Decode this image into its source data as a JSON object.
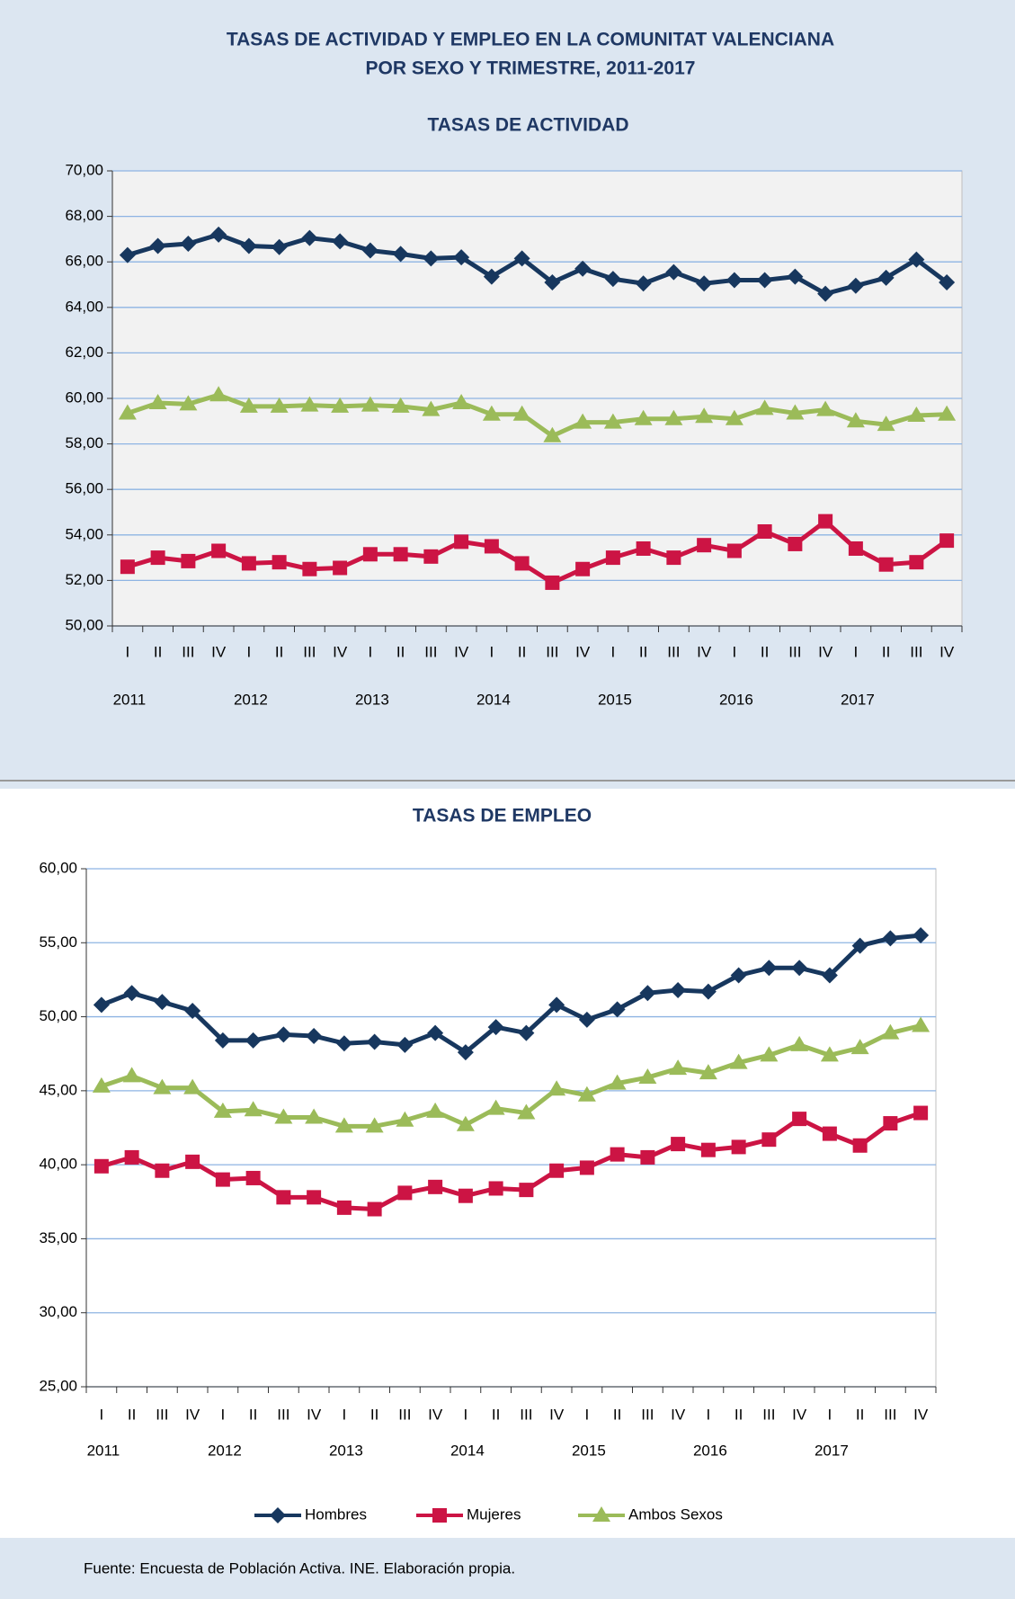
{
  "title_lines": [
    "TASAS DE ACTIVIDAD Y EMPLEO EN LA COMUNITAT VALENCIANA",
    "POR SEXO Y TRIMESTRE, 2011-2017"
  ],
  "source": "Fuente: Encuesta de Población Activa. INE. Elaboración propia.",
  "chart_data": [
    {
      "type": "line",
      "title": "TASAS DE ACTIVIDAD",
      "categories": [
        "I",
        "II",
        "III",
        "IV",
        "I",
        "II",
        "III",
        "IV",
        "I",
        "II",
        "III",
        "IV",
        "I",
        "II",
        "III",
        "IV",
        "I",
        "II",
        "III",
        "IV",
        "I",
        "II",
        "III",
        "IV",
        "I",
        "II",
        "III",
        "IV"
      ],
      "years": [
        "2011",
        "2012",
        "2013",
        "2014",
        "2015",
        "2016",
        "2017"
      ],
      "ylim": [
        50,
        70
      ],
      "yticks": [
        {
          "value": 50,
          "label": "50,00"
        },
        {
          "value": 52,
          "label": "52,00"
        },
        {
          "value": 54,
          "label": "54,00"
        },
        {
          "value": 56,
          "label": "56,00"
        },
        {
          "value": 58,
          "label": "58,00"
        },
        {
          "value": 60,
          "label": "60,00"
        },
        {
          "value": 62,
          "label": "62,00"
        },
        {
          "value": 64,
          "label": "64,00"
        },
        {
          "value": 66,
          "label": "66,00"
        },
        {
          "value": 68,
          "label": "68,00"
        },
        {
          "value": 70,
          "label": "70,00"
        }
      ],
      "grid": true,
      "series": [
        {
          "name": "Hombres",
          "color": "#17375e",
          "marker": "diamond",
          "values": [
            66.3,
            66.7,
            66.8,
            67.2,
            66.7,
            66.65,
            67.05,
            66.9,
            66.5,
            66.35,
            66.15,
            66.2,
            65.35,
            66.15,
            65.1,
            65.7,
            65.25,
            65.05,
            65.55,
            65.05,
            65.2,
            65.2,
            65.35,
            64.6,
            64.95,
            65.3,
            66.1,
            65.1
          ]
        },
        {
          "name": "Mujeres",
          "color": "#cc1444",
          "marker": "square",
          "values": [
            52.6,
            53.0,
            52.85,
            53.3,
            52.75,
            52.8,
            52.5,
            52.55,
            53.15,
            53.15,
            53.05,
            53.7,
            53.5,
            52.75,
            51.9,
            52.5,
            53.0,
            53.4,
            53.0,
            53.55,
            53.3,
            54.15,
            53.6,
            54.6,
            53.4,
            52.7,
            52.8,
            53.75
          ]
        },
        {
          "name": "Ambos Sexos",
          "color": "#9bbb59",
          "marker": "triangle",
          "values": [
            59.35,
            59.8,
            59.75,
            60.15,
            59.65,
            59.65,
            59.7,
            59.65,
            59.7,
            59.65,
            59.5,
            59.8,
            59.3,
            59.3,
            58.35,
            58.95,
            58.95,
            59.1,
            59.1,
            59.2,
            59.1,
            59.55,
            59.35,
            59.5,
            59.0,
            58.85,
            59.25,
            59.3
          ]
        }
      ]
    },
    {
      "type": "line",
      "title": "TASAS DE EMPLEO",
      "categories": [
        "I",
        "II",
        "III",
        "IV",
        "I",
        "II",
        "III",
        "IV",
        "I",
        "II",
        "III",
        "IV",
        "I",
        "II",
        "III",
        "IV",
        "I",
        "II",
        "III",
        "IV",
        "I",
        "II",
        "III",
        "IV",
        "I",
        "II",
        "III",
        "IV"
      ],
      "years": [
        "2011",
        "2012",
        "2013",
        "2014",
        "2015",
        "2016",
        "2017"
      ],
      "ylim": [
        25,
        60
      ],
      "yticks": [
        {
          "value": 25,
          "label": "25,00"
        },
        {
          "value": 30,
          "label": "30,00"
        },
        {
          "value": 35,
          "label": "35,00"
        },
        {
          "value": 40,
          "label": "40,00"
        },
        {
          "value": 45,
          "label": "45,00"
        },
        {
          "value": 50,
          "label": "50,00"
        },
        {
          "value": 55,
          "label": "55,00"
        },
        {
          "value": 60,
          "label": "60,00"
        }
      ],
      "grid": true,
      "series": [
        {
          "name": "Hombres",
          "color": "#17375e",
          "marker": "diamond",
          "values": [
            50.8,
            51.6,
            51.0,
            50.4,
            48.4,
            48.4,
            48.8,
            48.7,
            48.2,
            48.3,
            48.1,
            48.9,
            47.6,
            49.3,
            48.9,
            50.8,
            49.8,
            50.5,
            51.6,
            51.8,
            51.7,
            52.8,
            53.3,
            53.3,
            52.8,
            54.8,
            55.3,
            55.5
          ]
        },
        {
          "name": "Mujeres",
          "color": "#cc1444",
          "marker": "square",
          "values": [
            39.9,
            40.5,
            39.6,
            40.2,
            39.0,
            39.1,
            37.8,
            37.8,
            37.1,
            37.0,
            38.1,
            38.5,
            37.9,
            38.4,
            38.3,
            39.6,
            39.8,
            40.7,
            40.5,
            41.4,
            41.0,
            41.2,
            41.7,
            43.1,
            42.1,
            41.3,
            42.8,
            43.5
          ]
        },
        {
          "name": "Ambos Sexos",
          "color": "#9bbb59",
          "marker": "triangle",
          "values": [
            45.3,
            46.0,
            45.2,
            45.2,
            43.6,
            43.7,
            43.2,
            43.2,
            42.6,
            42.6,
            43.0,
            43.6,
            42.7,
            43.8,
            43.5,
            45.1,
            44.7,
            45.5,
            45.9,
            46.5,
            46.2,
            46.9,
            47.4,
            48.1,
            47.4,
            47.9,
            48.9,
            49.4
          ]
        }
      ],
      "legend": "bottom"
    }
  ]
}
